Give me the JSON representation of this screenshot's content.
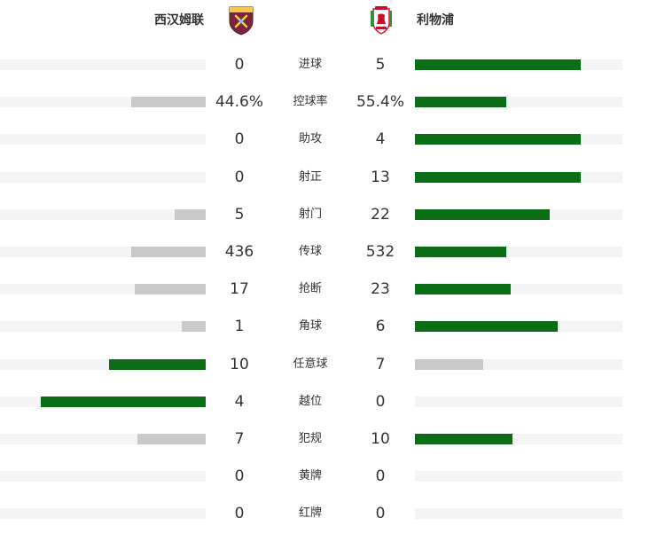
{
  "header": {
    "home_team": "西汉姆联",
    "away_team": "利物浦"
  },
  "colors": {
    "leading_bar": "#0b6d16",
    "trailing_bar": "#c9c9c9",
    "track": "#f4f4f4"
  },
  "stats": [
    {
      "label": "进球",
      "home": "0",
      "away": "5",
      "home_fill": 0.0,
      "away_fill": 0.8
    },
    {
      "label": "控球率",
      "home": "44.6%",
      "away": "55.4%",
      "home_fill": 0.36,
      "away_fill": 0.44
    },
    {
      "label": "助攻",
      "home": "0",
      "away": "4",
      "home_fill": 0.0,
      "away_fill": 0.8
    },
    {
      "label": "射正",
      "home": "0",
      "away": "13",
      "home_fill": 0.0,
      "away_fill": 0.8
    },
    {
      "label": "射门",
      "home": "5",
      "away": "22",
      "home_fill": 0.15,
      "away_fill": 0.65
    },
    {
      "label": "传球",
      "home": "436",
      "away": "532",
      "home_fill": 0.36,
      "away_fill": 0.44
    },
    {
      "label": "抢断",
      "home": "17",
      "away": "23",
      "home_fill": 0.345,
      "away_fill": 0.46
    },
    {
      "label": "角球",
      "home": "1",
      "away": "6",
      "home_fill": 0.115,
      "away_fill": 0.69
    },
    {
      "label": "任意球",
      "home": "10",
      "away": "7",
      "home_fill": 0.47,
      "away_fill": 0.33
    },
    {
      "label": "越位",
      "home": "4",
      "away": "0",
      "home_fill": 0.8,
      "away_fill": 0.0
    },
    {
      "label": "犯规",
      "home": "7",
      "away": "10",
      "home_fill": 0.33,
      "away_fill": 0.47
    },
    {
      "label": "黄牌",
      "home": "0",
      "away": "0",
      "home_fill": 0.0,
      "away_fill": 0.0
    },
    {
      "label": "红牌",
      "home": "0",
      "away": "0",
      "home_fill": 0.0,
      "away_fill": 0.0
    }
  ]
}
